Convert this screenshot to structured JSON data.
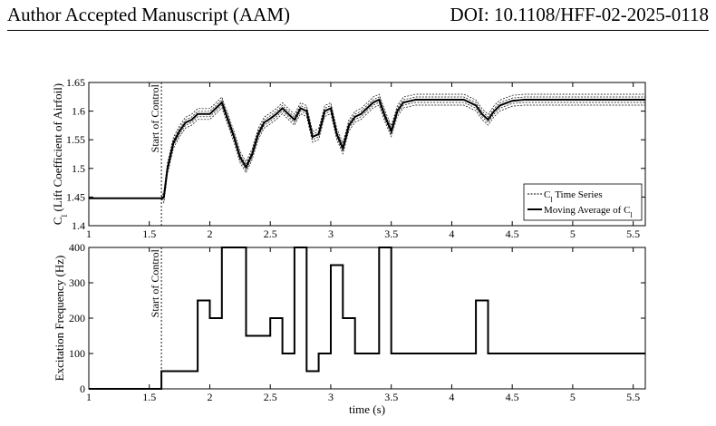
{
  "header": {
    "left": "Author Accepted Manuscript (AAM)",
    "right": "DOI: 10.1108/HFF-02-2025-0118"
  },
  "chart_data": [
    {
      "type": "line",
      "xlabel": "",
      "ylabel": "C_l (Lift Coefficient of Airfoil)",
      "xlim": [
        1,
        5.6
      ],
      "ylim": [
        1.4,
        1.65
      ],
      "xticks": [
        "1",
        "1.5",
        "2",
        "2.5",
        "3",
        "3.5",
        "4",
        "4.5",
        "5",
        "5.5"
      ],
      "yticks": [
        "1.4",
        "1.45",
        "1.5",
        "1.55",
        "1.6",
        "1.65"
      ],
      "annotation": "Start of Control",
      "control_start": 1.6,
      "legend": {
        "position": "bottom-right"
      },
      "series": [
        {
          "name": "C_l Time Series",
          "style": "dashed",
          "x": [
            1,
            1.6,
            1.62,
            1.65,
            1.7,
            1.75,
            1.8,
            1.85,
            1.9,
            1.95,
            2.0,
            2.05,
            2.1,
            2.15,
            2.2,
            2.25,
            2.3,
            2.35,
            2.4,
            2.45,
            2.5,
            2.55,
            2.6,
            2.65,
            2.7,
            2.75,
            2.8,
            2.85,
            2.9,
            2.95,
            3.0,
            3.05,
            3.1,
            3.15,
            3.2,
            3.25,
            3.3,
            3.35,
            3.4,
            3.45,
            3.5,
            3.55,
            3.6,
            3.7,
            3.8,
            3.9,
            4.0,
            4.1,
            4.2,
            4.25,
            4.3,
            4.35,
            4.4,
            4.5,
            4.6,
            4.8,
            5.0,
            5.2,
            5.4,
            5.6
          ],
          "y": [
            1.448,
            1.448,
            1.45,
            1.5,
            1.545,
            1.565,
            1.58,
            1.585,
            1.595,
            1.595,
            1.595,
            1.605,
            1.615,
            1.585,
            1.555,
            1.52,
            1.502,
            1.525,
            1.56,
            1.58,
            1.587,
            1.595,
            1.605,
            1.595,
            1.585,
            1.605,
            1.6,
            1.555,
            1.56,
            1.6,
            1.605,
            1.56,
            1.535,
            1.575,
            1.59,
            1.595,
            1.605,
            1.615,
            1.62,
            1.59,
            1.565,
            1.6,
            1.615,
            1.62,
            1.62,
            1.62,
            1.62,
            1.62,
            1.61,
            1.595,
            1.585,
            1.6,
            1.61,
            1.618,
            1.62,
            1.62,
            1.62,
            1.62,
            1.62,
            1.62
          ]
        },
        {
          "name": "Moving Average of C_l",
          "style": "solid",
          "x": [
            1,
            1.6,
            1.62,
            1.65,
            1.7,
            1.75,
            1.8,
            1.85,
            1.9,
            1.95,
            2.0,
            2.05,
            2.1,
            2.15,
            2.2,
            2.25,
            2.3,
            2.35,
            2.4,
            2.45,
            2.5,
            2.55,
            2.6,
            2.65,
            2.7,
            2.75,
            2.8,
            2.85,
            2.9,
            2.95,
            3.0,
            3.05,
            3.1,
            3.15,
            3.2,
            3.25,
            3.3,
            3.35,
            3.4,
            3.45,
            3.5,
            3.55,
            3.6,
            3.7,
            3.8,
            3.9,
            4.0,
            4.1,
            4.2,
            4.25,
            4.3,
            4.35,
            4.4,
            4.5,
            4.6,
            4.8,
            5.0,
            5.2,
            5.4,
            5.6
          ],
          "y": [
            1.448,
            1.448,
            1.45,
            1.5,
            1.545,
            1.565,
            1.58,
            1.585,
            1.595,
            1.595,
            1.595,
            1.605,
            1.615,
            1.585,
            1.555,
            1.52,
            1.502,
            1.525,
            1.56,
            1.58,
            1.587,
            1.595,
            1.605,
            1.595,
            1.585,
            1.605,
            1.6,
            1.555,
            1.56,
            1.6,
            1.605,
            1.56,
            1.535,
            1.575,
            1.59,
            1.595,
            1.605,
            1.615,
            1.62,
            1.59,
            1.565,
            1.6,
            1.615,
            1.62,
            1.62,
            1.62,
            1.62,
            1.62,
            1.61,
            1.595,
            1.585,
            1.6,
            1.61,
            1.618,
            1.62,
            1.62,
            1.62,
            1.62,
            1.62,
            1.62
          ]
        }
      ]
    },
    {
      "type": "line",
      "xlabel": "time (s)",
      "ylabel": "Excitation Frequency (Hz)",
      "xlim": [
        1,
        5.6
      ],
      "ylim": [
        0,
        400
      ],
      "xticks": [
        "1",
        "1.5",
        "2",
        "2.5",
        "3",
        "3.5",
        "4",
        "4.5",
        "5",
        "5.5"
      ],
      "yticks": [
        "0",
        "100",
        "200",
        "300",
        "400"
      ],
      "annotation": "Start of Control",
      "control_start": 1.6,
      "series": [
        {
          "step": true,
          "x": [
            1,
            1.6,
            1.9,
            2.0,
            2.1,
            2.3,
            2.5,
            2.6,
            2.7,
            2.8,
            2.9,
            3.0,
            3.1,
            3.2,
            3.4,
            3.5,
            4.2,
            4.3,
            5.6
          ],
          "y": [
            0,
            50,
            250,
            200,
            400,
            150,
            200,
            100,
            400,
            50,
            100,
            350,
            200,
            100,
            400,
            100,
            250,
            100,
            100
          ]
        }
      ]
    }
  ]
}
